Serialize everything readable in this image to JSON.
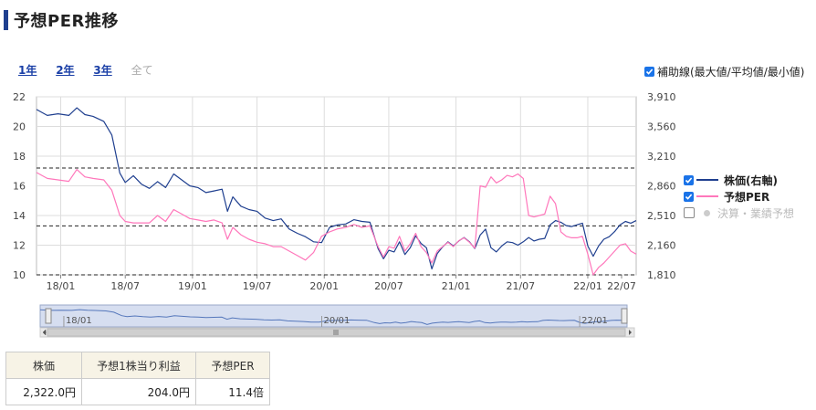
{
  "title": "予想PER推移",
  "ranges": [
    {
      "label": "1年",
      "enabled": true
    },
    {
      "label": "2年",
      "enabled": true
    },
    {
      "label": "3年",
      "enabled": true
    },
    {
      "label": "全て",
      "enabled": false
    }
  ],
  "aux_lines_label": "補助線(最大値/平均値/最小値)",
  "legend": [
    {
      "label": "株価(右軸)",
      "checked": true,
      "color": "#1f3f8f"
    },
    {
      "label": "予想PER",
      "checked": true,
      "color": "#ff77bb"
    },
    {
      "label": "決算・業績予想",
      "checked": false,
      "color": "#cccccc"
    }
  ],
  "summary": {
    "headers": [
      "株価",
      "予想1株当り利益",
      "予想PER"
    ],
    "values": [
      "2,322.0円",
      "204.0円",
      "11.4倍"
    ]
  },
  "chart_data": {
    "type": "line",
    "x_ticks": [
      "18/01",
      "18/07",
      "19/01",
      "19/07",
      "20/01",
      "20/07",
      "21/01",
      "21/07",
      "22/01",
      "22/07"
    ],
    "y_left": {
      "ticks": [
        "10",
        "12",
        "14",
        "16",
        "18",
        "20",
        "22"
      ],
      "range": [
        10,
        22
      ]
    },
    "y_right": {
      "ticks": [
        "1,810",
        "2,160",
        "2,510",
        "2,860",
        "3,210",
        "3,560",
        "3,910"
      ],
      "range": [
        1810,
        3910
      ]
    },
    "reference_lines_per": {
      "max": 17.2,
      "avg": 13.3,
      "min": 10.0
    },
    "nav_labels": [
      "18/01",
      "20/01",
      "22/01"
    ],
    "series": [
      {
        "name": "株価(右軸)",
        "axis": "right",
        "points": [
          [
            0,
            3760
          ],
          [
            4,
            3690
          ],
          [
            8,
            3710
          ],
          [
            12,
            3690
          ],
          [
            15,
            3780
          ],
          [
            18,
            3700
          ],
          [
            21,
            3680
          ],
          [
            25,
            3620
          ],
          [
            28,
            3460
          ],
          [
            31,
            3010
          ],
          [
            33,
            2900
          ],
          [
            36,
            2980
          ],
          [
            39,
            2880
          ],
          [
            42,
            2830
          ],
          [
            45,
            2910
          ],
          [
            48,
            2840
          ],
          [
            51,
            3000
          ],
          [
            54,
            2930
          ],
          [
            57,
            2860
          ],
          [
            60,
            2840
          ],
          [
            63,
            2780
          ],
          [
            66,
            2800
          ],
          [
            69,
            2820
          ],
          [
            71,
            2560
          ],
          [
            73,
            2730
          ],
          [
            76,
            2620
          ],
          [
            79,
            2580
          ],
          [
            82,
            2560
          ],
          [
            85,
            2480
          ],
          [
            88,
            2450
          ],
          [
            91,
            2470
          ],
          [
            94,
            2350
          ],
          [
            97,
            2300
          ],
          [
            100,
            2260
          ],
          [
            103,
            2200
          ],
          [
            106,
            2190
          ],
          [
            109,
            2370
          ],
          [
            112,
            2400
          ],
          [
            115,
            2410
          ],
          [
            118,
            2460
          ],
          [
            121,
            2440
          ],
          [
            124,
            2430
          ],
          [
            127,
            2120
          ],
          [
            129,
            2000
          ],
          [
            131,
            2100
          ],
          [
            133,
            2080
          ],
          [
            135,
            2200
          ],
          [
            137,
            2050
          ],
          [
            139,
            2130
          ],
          [
            141,
            2270
          ],
          [
            143,
            2180
          ],
          [
            145,
            2130
          ],
          [
            147,
            1880
          ],
          [
            149,
            2060
          ],
          [
            151,
            2140
          ],
          [
            153,
            2200
          ],
          [
            155,
            2150
          ],
          [
            157,
            2210
          ],
          [
            159,
            2250
          ],
          [
            161,
            2200
          ],
          [
            163,
            2120
          ],
          [
            165,
            2280
          ],
          [
            167,
            2350
          ],
          [
            169,
            2130
          ],
          [
            171,
            2080
          ],
          [
            173,
            2150
          ],
          [
            175,
            2200
          ],
          [
            177,
            2190
          ],
          [
            179,
            2160
          ],
          [
            181,
            2200
          ],
          [
            183,
            2250
          ],
          [
            185,
            2210
          ],
          [
            187,
            2230
          ],
          [
            189,
            2240
          ],
          [
            191,
            2400
          ],
          [
            193,
            2450
          ],
          [
            195,
            2430
          ],
          [
            197,
            2390
          ],
          [
            199,
            2380
          ],
          [
            201,
            2400
          ],
          [
            203,
            2420
          ],
          [
            205,
            2150
          ],
          [
            207,
            2030
          ],
          [
            209,
            2150
          ],
          [
            211,
            2230
          ],
          [
            213,
            2260
          ],
          [
            215,
            2320
          ],
          [
            217,
            2400
          ],
          [
            219,
            2440
          ],
          [
            221,
            2420
          ],
          [
            223,
            2450
          ]
        ]
      },
      {
        "name": "予想PER",
        "axis": "left",
        "points": [
          [
            0,
            16.9
          ],
          [
            4,
            16.5
          ],
          [
            8,
            16.4
          ],
          [
            12,
            16.3
          ],
          [
            15,
            17.1
          ],
          [
            18,
            16.6
          ],
          [
            21,
            16.5
          ],
          [
            25,
            16.4
          ],
          [
            28,
            15.7
          ],
          [
            31,
            14.0
          ],
          [
            33,
            13.6
          ],
          [
            36,
            13.5
          ],
          [
            39,
            13.5
          ],
          [
            42,
            13.5
          ],
          [
            45,
            14.0
          ],
          [
            48,
            13.6
          ],
          [
            51,
            14.4
          ],
          [
            54,
            14.1
          ],
          [
            57,
            13.8
          ],
          [
            60,
            13.7
          ],
          [
            63,
            13.6
          ],
          [
            66,
            13.7
          ],
          [
            69,
            13.5
          ],
          [
            71,
            12.4
          ],
          [
            73,
            13.2
          ],
          [
            76,
            12.7
          ],
          [
            79,
            12.4
          ],
          [
            82,
            12.2
          ],
          [
            85,
            12.1
          ],
          [
            88,
            11.9
          ],
          [
            91,
            11.9
          ],
          [
            94,
            11.6
          ],
          [
            97,
            11.3
          ],
          [
            100,
            11.0
          ],
          [
            103,
            11.5
          ],
          [
            106,
            12.6
          ],
          [
            109,
            12.9
          ],
          [
            112,
            13.1
          ],
          [
            115,
            13.2
          ],
          [
            118,
            13.4
          ],
          [
            121,
            13.2
          ],
          [
            124,
            13.3
          ],
          [
            127,
            11.9
          ],
          [
            129,
            11.2
          ],
          [
            131,
            11.9
          ],
          [
            133,
            11.8
          ],
          [
            135,
            12.6
          ],
          [
            137,
            11.6
          ],
          [
            139,
            12.1
          ],
          [
            141,
            12.8
          ],
          [
            143,
            11.9
          ],
          [
            145,
            11.5
          ],
          [
            147,
            10.8
          ],
          [
            149,
            11.6
          ],
          [
            151,
            11.9
          ],
          [
            153,
            12.2
          ],
          [
            155,
            11.9
          ],
          [
            157,
            12.3
          ],
          [
            159,
            12.5
          ],
          [
            161,
            12.2
          ],
          [
            163,
            11.8
          ],
          [
            165,
            16.0
          ],
          [
            167,
            15.9
          ],
          [
            169,
            16.6
          ],
          [
            171,
            16.2
          ],
          [
            173,
            16.4
          ],
          [
            175,
            16.7
          ],
          [
            177,
            16.6
          ],
          [
            179,
            16.8
          ],
          [
            181,
            16.5
          ],
          [
            183,
            14.0
          ],
          [
            185,
            13.9
          ],
          [
            187,
            14.0
          ],
          [
            189,
            14.1
          ],
          [
            191,
            15.3
          ],
          [
            193,
            14.8
          ],
          [
            195,
            12.9
          ],
          [
            197,
            12.6
          ],
          [
            199,
            12.5
          ],
          [
            201,
            12.5
          ],
          [
            203,
            12.6
          ],
          [
            205,
            11.4
          ],
          [
            207,
            10.0
          ],
          [
            209,
            10.5
          ],
          [
            211,
            10.8
          ],
          [
            213,
            11.2
          ],
          [
            215,
            11.6
          ],
          [
            217,
            12.0
          ],
          [
            219,
            12.1
          ],
          [
            221,
            11.6
          ],
          [
            223,
            11.4
          ]
        ]
      }
    ]
  }
}
